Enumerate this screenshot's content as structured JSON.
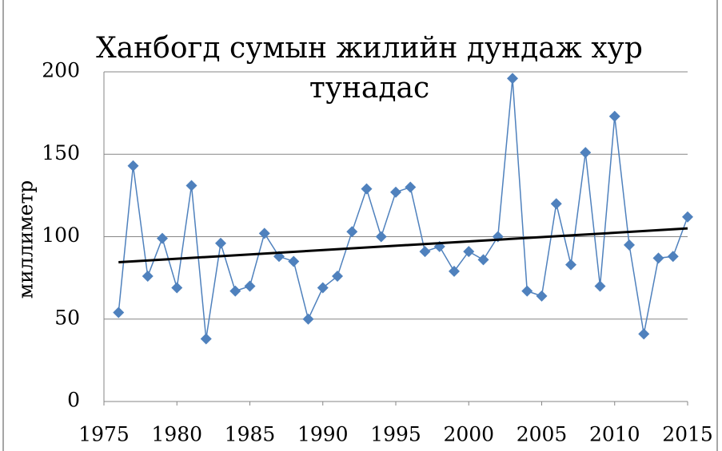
{
  "chart_data": {
    "type": "line",
    "title": "Ханбогд сумын жилийн дундаж хур тунадас",
    "y_label": "миллиметр",
    "x": [
      1976,
      1977,
      1978,
      1979,
      1980,
      1981,
      1982,
      1983,
      1984,
      1985,
      1986,
      1987,
      1988,
      1989,
      1990,
      1991,
      1992,
      1993,
      1994,
      1995,
      1996,
      1997,
      1998,
      1999,
      2000,
      2001,
      2002,
      2003,
      2004,
      2005,
      2006,
      2007,
      2008,
      2009,
      2010,
      2011,
      2012,
      2013,
      2014,
      2015
    ],
    "series": [
      {
        "color": "#4f81bd",
        "values": [
          54,
          143,
          76,
          99,
          69,
          131,
          38,
          96,
          67,
          70,
          102,
          88,
          85,
          50,
          69,
          76,
          103,
          129,
          100,
          127,
          130,
          91,
          94,
          79,
          91,
          86,
          100,
          196,
          67,
          64,
          120,
          83,
          151,
          70,
          173,
          95,
          41,
          87,
          88,
          112
        ]
      }
    ],
    "trend": {
      "color": "#000000",
      "x": [
        1976,
        2015
      ],
      "values": [
        84.5,
        105
      ]
    },
    "xlim": [
      1975,
      2015
    ],
    "xticks": [
      1975,
      1980,
      1985,
      1990,
      1995,
      2000,
      2005,
      2010,
      2015
    ],
    "ylim": [
      0,
      200
    ],
    "yticks": [
      0,
      50,
      100,
      150,
      200
    ],
    "grid": true
  }
}
